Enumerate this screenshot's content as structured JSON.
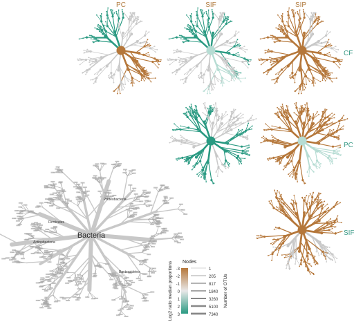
{
  "columns": [
    "PC",
    "SIF",
    "SIP"
  ],
  "rows": [
    "CF",
    "PC",
    "SIF"
  ],
  "center_label": "Bacteria",
  "branch_labels": [
    "Firmicutes",
    "Proteobacteria",
    "Actinobacteria",
    "Bacteroidetes"
  ],
  "legend": {
    "title": "Nodes",
    "color_axis_label": "Log2 ratio median proportions",
    "color_ticks": [
      "-3",
      "-2",
      "-1",
      "0",
      "1",
      "2",
      "3"
    ],
    "size_axis_label": "Number of OTUs",
    "size_ticks": [
      "1",
      "205",
      "817",
      "1840",
      "3260",
      "5100",
      "7340"
    ]
  },
  "colors": {
    "brown": "#b5773a",
    "teal": "#2a9a82",
    "light_teal": "#b6dcd3",
    "grey": "#c8c8c8",
    "dark_grey": "#a9a9a9"
  }
}
